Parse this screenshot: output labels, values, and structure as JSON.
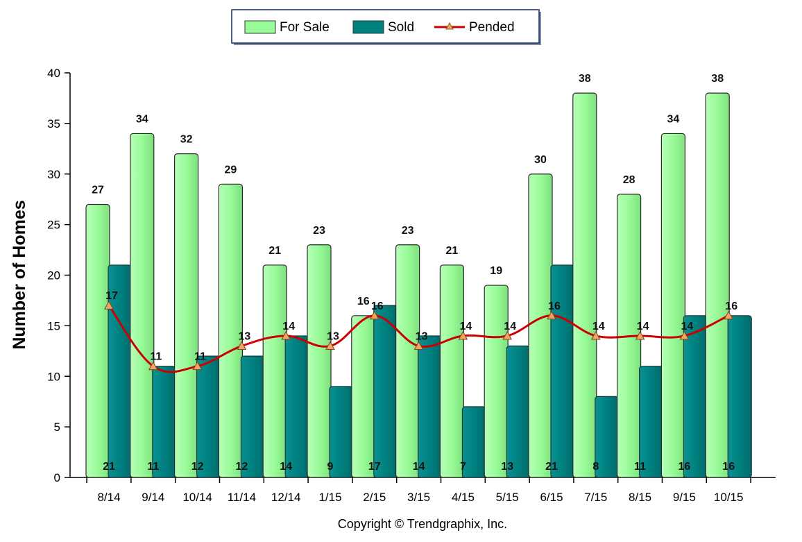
{
  "chart_data": {
    "type": "bar",
    "categories": [
      "8/14",
      "9/14",
      "10/14",
      "11/14",
      "12/14",
      "1/15",
      "2/15",
      "3/15",
      "4/15",
      "5/15",
      "6/15",
      "7/15",
      "8/15",
      "9/15",
      "10/15"
    ],
    "series": [
      {
        "name": "For Sale",
        "kind": "bar",
        "color": "#98FB98",
        "values": [
          27,
          34,
          32,
          29,
          21,
          23,
          16,
          23,
          21,
          19,
          30,
          38,
          28,
          34,
          38
        ]
      },
      {
        "name": "Sold",
        "kind": "bar",
        "color": "#008080",
        "values": [
          21,
          11,
          12,
          12,
          14,
          9,
          17,
          14,
          7,
          13,
          21,
          8,
          11,
          16,
          16
        ]
      },
      {
        "name": "Pended",
        "kind": "line",
        "color": "#CC0000",
        "marker": "triangle",
        "marker_color": "#F4A460",
        "values": [
          17,
          11,
          11,
          13,
          14,
          13,
          16,
          13,
          14,
          14,
          16,
          14,
          14,
          14,
          16
        ]
      }
    ],
    "title": "",
    "xlabel": "",
    "ylabel": "Number of Homes",
    "ylim": [
      0,
      40
    ],
    "yticks": [
      0,
      5,
      10,
      15,
      20,
      25,
      30,
      35,
      40
    ],
    "legend_position": "top-center",
    "grid": false,
    "footer": "Copyright © Trendgraphix, Inc."
  }
}
